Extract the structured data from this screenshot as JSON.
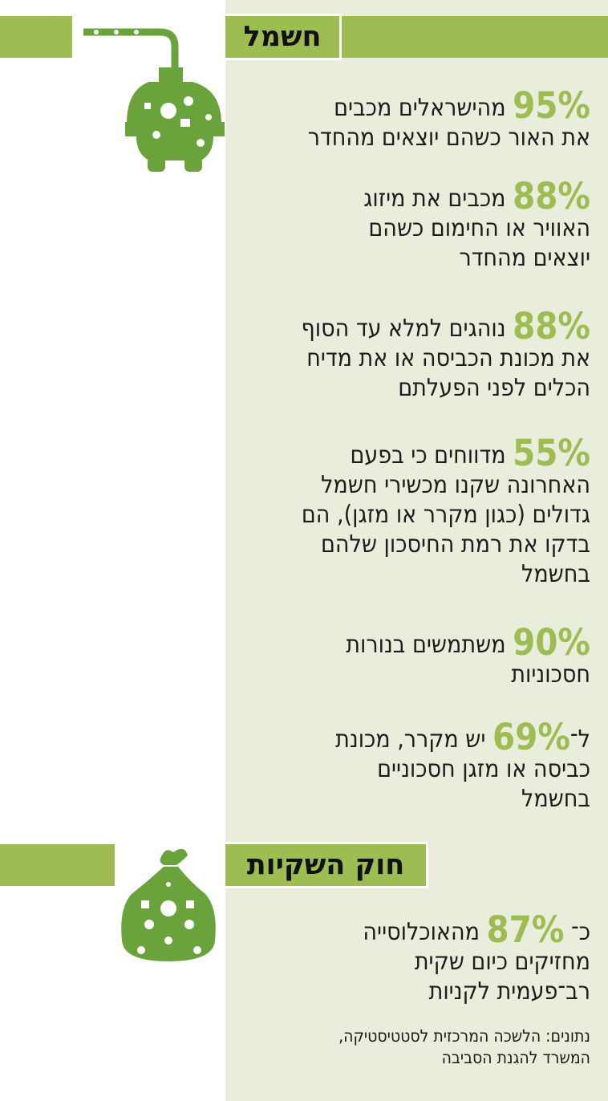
{
  "colors": {
    "accent": "#9dbc52",
    "panel": "#e9eedc",
    "text": "#1c1c1c"
  },
  "sections": [
    {
      "title": "חשמל",
      "icon": "plug-eco-icon",
      "stats": [
        {
          "pct": "95%",
          "before": "",
          "after": " מהישראלים מכבים",
          "lines": [
            "את האור כשהם יוצאים מהחדר"
          ]
        },
        {
          "pct": "88%",
          "before": "",
          "after": " מכבים את מיזוג",
          "lines": [
            "האוויר או החימום כשהם",
            "יוצאים מהחדר"
          ]
        },
        {
          "pct": "88%",
          "before": "",
          "after": " נוהגים למלא עד הסוף",
          "lines": [
            "את מכונת הכביסה או את מדיח",
            "הכלים לפני הפעלתם"
          ]
        },
        {
          "pct": "55%",
          "before": "",
          "after": " מדווחים כי בפעם",
          "lines": [
            "האחרונה שקנו מכשירי חשמל",
            "גדולים (כגון מקרר או מזגן), הם",
            "בדקו את רמת החיסכון שלהם",
            "בחשמל"
          ]
        },
        {
          "pct": "90%",
          "before": "",
          "after": " משתמשים בנורות",
          "lines": [
            "חסכוניות"
          ]
        },
        {
          "pct": "69%",
          "before": "ל־",
          "after": " יש מקרר, מכונת",
          "lines": [
            "כביסה או מזגן חסכוניים",
            "בחשמל"
          ]
        }
      ]
    },
    {
      "title": "חוק השקיות",
      "icon": "bag-eco-icon",
      "stats": [
        {
          "pct": "87%",
          "before": "כ־ ",
          "after": " מהאוכלוסייה",
          "lines": [
            "מחזיקים כיום שקית",
            "רב־פעמית לקניות"
          ]
        }
      ]
    }
  ],
  "source": {
    "lines": [
      "נתונים: הלשכה המרכזית לסטטיסטיקה,",
      "המשרד להגנת הסביבה"
    ]
  }
}
